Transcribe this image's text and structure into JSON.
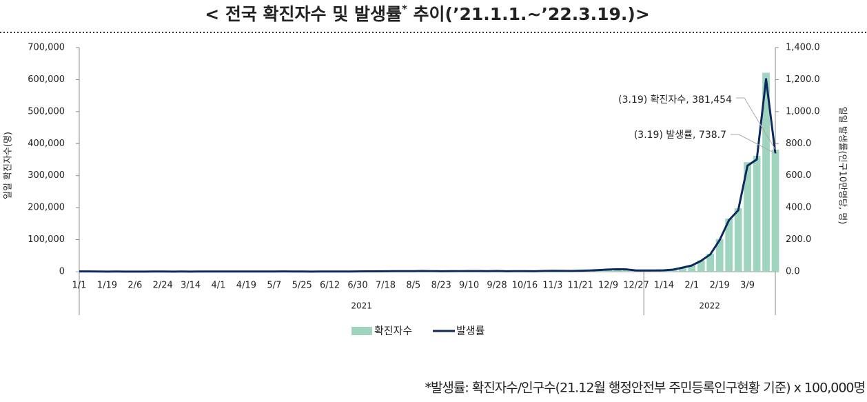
{
  "chart_data": {
    "type": "bar-line",
    "title_parts": [
      "< 전국 확진자수 및 발생률",
      "*",
      " 추이(’21.1.1.~’22.3.19.)>"
    ],
    "footnote": "*발생률: 확진자수/인구수(21.12월 행정안전부 주민등록인구현황 기준) x 100,000명",
    "ylabel": "일일 확진자수(명)",
    "y2label": "일일 발생률(인구10만명당, 명)",
    "groups": [
      "2021",
      "2022"
    ],
    "categories": [
      "1/1",
      null,
      null,
      "1/19",
      null,
      null,
      "2/6",
      null,
      null,
      "2/24",
      null,
      null,
      "3/14",
      null,
      null,
      "4/1",
      null,
      null,
      "4/19",
      null,
      null,
      "5/7",
      null,
      null,
      "5/25",
      null,
      null,
      "6/12",
      null,
      null,
      "6/30",
      null,
      null,
      "7/18",
      null,
      null,
      "8/5",
      null,
      null,
      "8/23",
      null,
      null,
      "9/10",
      null,
      null,
      "9/28",
      null,
      null,
      "10/16",
      null,
      null,
      "11/3",
      null,
      null,
      "11/21",
      null,
      null,
      "12/9",
      null,
      null,
      "12/27",
      null,
      null,
      "1/14",
      null,
      null,
      "2/1",
      null,
      null,
      "2/19",
      null,
      null,
      "3/9",
      null,
      null,
      null
    ],
    "series": [
      {
        "name": "확진자수",
        "color": "#9fd4be",
        "values": [
          800,
          870,
          560,
          390,
          440,
          360,
          370,
          400,
          620,
          440,
          340,
          450,
          380,
          450,
          500,
          550,
          670,
          540,
          530,
          640,
          600,
          520,
          700,
          650,
          520,
          430,
          550,
          450,
          500,
          630,
          760,
          1200,
          1100,
          1450,
          1630,
          1710,
          1770,
          2220,
          1800,
          1500,
          1600,
          1800,
          2000,
          2000,
          1700,
          2300,
          1500,
          1600,
          1600,
          1400,
          2100,
          2700,
          2400,
          2100,
          3100,
          4000,
          5300,
          7000,
          7800,
          7400,
          3900,
          3800,
          4000,
          4500,
          6600,
          13000,
          20000,
          35000,
          56000,
          102000,
          166000,
          198000,
          342000,
          362000,
          621328,
          381454
        ]
      },
      {
        "name": "발생률",
        "color": "#0d2a5e",
        "axis": "y2",
        "values": [
          1.5,
          1.7,
          1.1,
          0.8,
          0.9,
          0.7,
          0.7,
          0.8,
          1.2,
          0.9,
          0.7,
          0.9,
          0.7,
          0.9,
          1.0,
          1.1,
          1.3,
          1.0,
          1.0,
          1.2,
          1.2,
          1.0,
          1.4,
          1.3,
          1.0,
          0.8,
          1.1,
          0.9,
          1.0,
          1.2,
          1.5,
          2.3,
          2.1,
          2.8,
          3.2,
          3.3,
          3.4,
          4.3,
          3.5,
          2.9,
          3.1,
          3.5,
          3.9,
          3.9,
          3.3,
          4.5,
          2.9,
          3.1,
          3.1,
          2.7,
          4.1,
          5.2,
          4.6,
          4.1,
          6.0,
          7.7,
          10.3,
          13.6,
          15.1,
          14.3,
          7.6,
          7.4,
          7.7,
          8.7,
          12.8,
          25.2,
          38.7,
          67.8,
          108.5,
          197.6,
          321.5,
          383.5,
          662.4,
          701.1,
          1203.4,
          738.7
        ]
      }
    ],
    "annotations": [
      "(3.19) 확진자수, 381,454",
      "(3.19) 발생률, 738.7"
    ],
    "ylim": [
      0,
      700000
    ],
    "yticks": [
      0,
      {
        "value": 100000,
        "label": "100,000"
      },
      {
        "value": 200000,
        "label": "200,000"
      },
      {
        "value": 300000,
        "label": "300,000"
      },
      {
        "value": 400000,
        "label": "400,000"
      },
      {
        "value": 500000,
        "label": "500,000"
      },
      {
        "value": 600000,
        "label": "600,000"
      },
      {
        "value": 700000,
        "label": "700,000"
      }
    ],
    "y2lim": [
      0,
      1400
    ],
    "y2ticks": [
      {
        "value": 0,
        "label": "0.0"
      },
      {
        "value": 200,
        "label": "200.0"
      },
      {
        "value": 400,
        "label": "400.0"
      },
      {
        "value": 600,
        "label": "600.0"
      },
      {
        "value": 800,
        "label": "800.0"
      },
      {
        "value": 1000,
        "label": "1,000.0"
      },
      {
        "value": 1200,
        "label": "1,200.0"
      },
      {
        "value": 1400,
        "label": "1,400.0"
      }
    ],
    "legend": "bottom"
  }
}
